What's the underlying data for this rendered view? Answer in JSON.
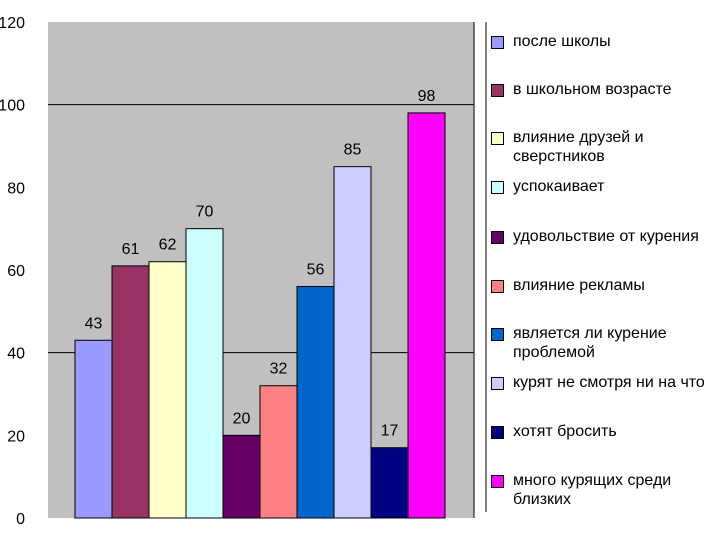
{
  "chart_data": {
    "type": "bar",
    "categories": [
      "после школы",
      "в школьном возрасте",
      "влияние друзей и сверстников",
      "успокаивает",
      "удовольствие от курения",
      "влияние рекламы",
      "является ли курение проблемой",
      "курят не смотря ни на что",
      "хотят бросить",
      "много курящих среди близких"
    ],
    "values": [
      43,
      61,
      62,
      70,
      20,
      32,
      56,
      85,
      17,
      98
    ],
    "data_labels": [
      "43",
      "61",
      "62",
      "70",
      "20",
      "32",
      "56",
      "85",
      "17",
      "98"
    ],
    "colors": [
      "#9999ff",
      "#993366",
      "#ffffcc",
      "#ccffff",
      "#660066",
      "#ff8080",
      "#0066cc",
      "#ccccff",
      "#000080",
      "#ff00ff"
    ],
    "ylim": [
      0,
      120
    ],
    "yticks": [
      0,
      20,
      40,
      60,
      80,
      100,
      120
    ],
    "ytick_labels": [
      "0",
      "20",
      "40",
      "60",
      "80",
      "100",
      "120"
    ],
    "gridlines": [
      40,
      100
    ],
    "plot_background": "#c0c0c0",
    "legend_position": "right",
    "title": "",
    "xlabel": "",
    "ylabel": ""
  }
}
